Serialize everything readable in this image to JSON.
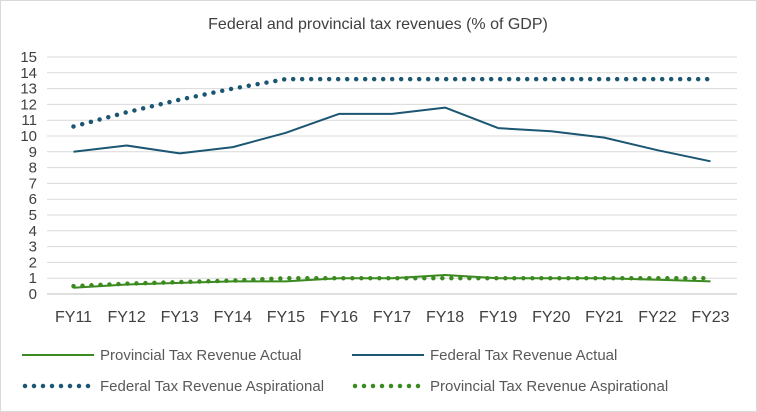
{
  "chart_data": {
    "type": "line",
    "title": "Federal and provincial tax revenues (% of GDP)",
    "categories": [
      "FY11",
      "FY12",
      "FY13",
      "FY14",
      "FY15",
      "FY16",
      "FY17",
      "FY18",
      "FY19",
      "FY20",
      "FY21",
      "FY22",
      "FY23"
    ],
    "ylim": [
      0,
      15
    ],
    "yticks": [
      0,
      1,
      2,
      3,
      4,
      5,
      6,
      7,
      8,
      9,
      10,
      11,
      12,
      13,
      14,
      15
    ],
    "grid": true,
    "legend_position": "bottom",
    "series": [
      {
        "name": "Provincial Tax Revenue Actual",
        "color": "#3a8a1f",
        "style": "solid",
        "values": [
          0.4,
          0.6,
          0.7,
          0.8,
          0.8,
          1.0,
          1.0,
          1.2,
          1.0,
          1.0,
          1.0,
          0.9,
          0.8
        ]
      },
      {
        "name": "Federal Tax Revenue Actual",
        "color": "#1b5672",
        "style": "solid",
        "values": [
          9.0,
          9.4,
          8.9,
          9.3,
          10.2,
          11.4,
          11.4,
          11.8,
          10.5,
          10.3,
          9.9,
          9.1,
          8.4
        ]
      },
      {
        "name": "Federal Tax Revenue Aspirational",
        "color": "#1b5672",
        "style": "dotted",
        "values": [
          10.6,
          11.5,
          12.3,
          13.0,
          13.6,
          13.6,
          13.6,
          13.6,
          13.6,
          13.6,
          13.6,
          13.6,
          13.6
        ]
      },
      {
        "name": "Provincial Tax Revenue Aspirational",
        "color": "#3a8a1f",
        "style": "dotted",
        "values": [
          0.5,
          0.65,
          0.75,
          0.85,
          1.0,
          1.0,
          1.0,
          1.0,
          1.0,
          1.0,
          1.0,
          1.0,
          1.0
        ]
      }
    ]
  }
}
